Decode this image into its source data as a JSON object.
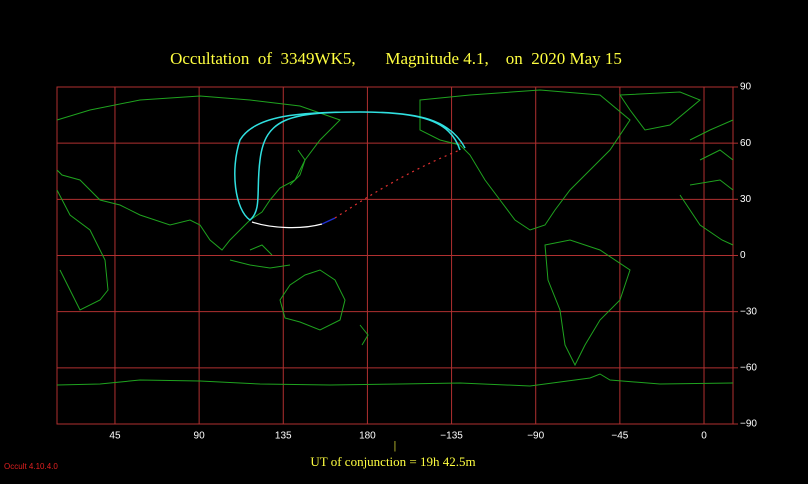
{
  "title": "Occultation  of  3349WK5,       Magnitude 4.1,    on  2020 May 15",
  "xlim": [
    14,
    375.5
  ],
  "xticks": [
    45,
    90,
    135,
    180,
    {
      "value": 225,
      "label": "−135"
    },
    {
      "value": 270,
      "label": "−90"
    },
    {
      "value": 315,
      "label": "−45"
    },
    {
      "value": 360,
      "label": "0"
    }
  ],
  "ylim": [
    -90,
    90
  ],
  "yticks": [
    90,
    60,
    30,
    0,
    {
      "value": -30,
      "label": "−30"
    },
    {
      "value": -60,
      "label": "−60"
    },
    {
      "value": -90,
      "label": "−90"
    }
  ],
  "conjunction_label": "UT of conjunction = 19h 42.5m",
  "version": "Occult 4.10.4.0"
}
